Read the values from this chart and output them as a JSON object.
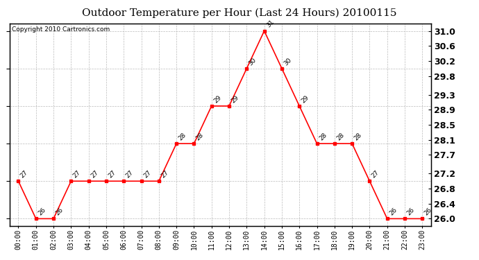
{
  "title": "Outdoor Temperature per Hour (Last 24 Hours) 20100115",
  "copyright": "Copyright 2010 Cartronics.com",
  "hours": [
    "00:00",
    "01:00",
    "02:00",
    "03:00",
    "04:00",
    "05:00",
    "06:00",
    "07:00",
    "08:00",
    "09:00",
    "10:00",
    "11:00",
    "12:00",
    "13:00",
    "14:00",
    "15:00",
    "16:00",
    "17:00",
    "18:00",
    "19:00",
    "20:00",
    "21:00",
    "22:00",
    "23:00"
  ],
  "temperatures": [
    27,
    26,
    26,
    27,
    27,
    27,
    27,
    27,
    27,
    28,
    28,
    29,
    29,
    30,
    31,
    30,
    29,
    28,
    28,
    28,
    27,
    26,
    26,
    26
  ],
  "ylim": [
    25.8,
    31.2
  ],
  "yticks": [
    26.0,
    26.4,
    26.8,
    27.2,
    27.7,
    28.1,
    28.5,
    28.9,
    29.3,
    29.8,
    30.2,
    30.6,
    31.0
  ],
  "line_color": "red",
  "marker": "s",
  "marker_size": 3,
  "grid_color": "#bbbbbb",
  "bg_color": "white",
  "label_color": "black",
  "title_fontsize": 11,
  "copyright_fontsize": 6.5,
  "tick_fontsize": 7,
  "annotation_fontsize": 6.5,
  "ytick_fontsize": 9
}
